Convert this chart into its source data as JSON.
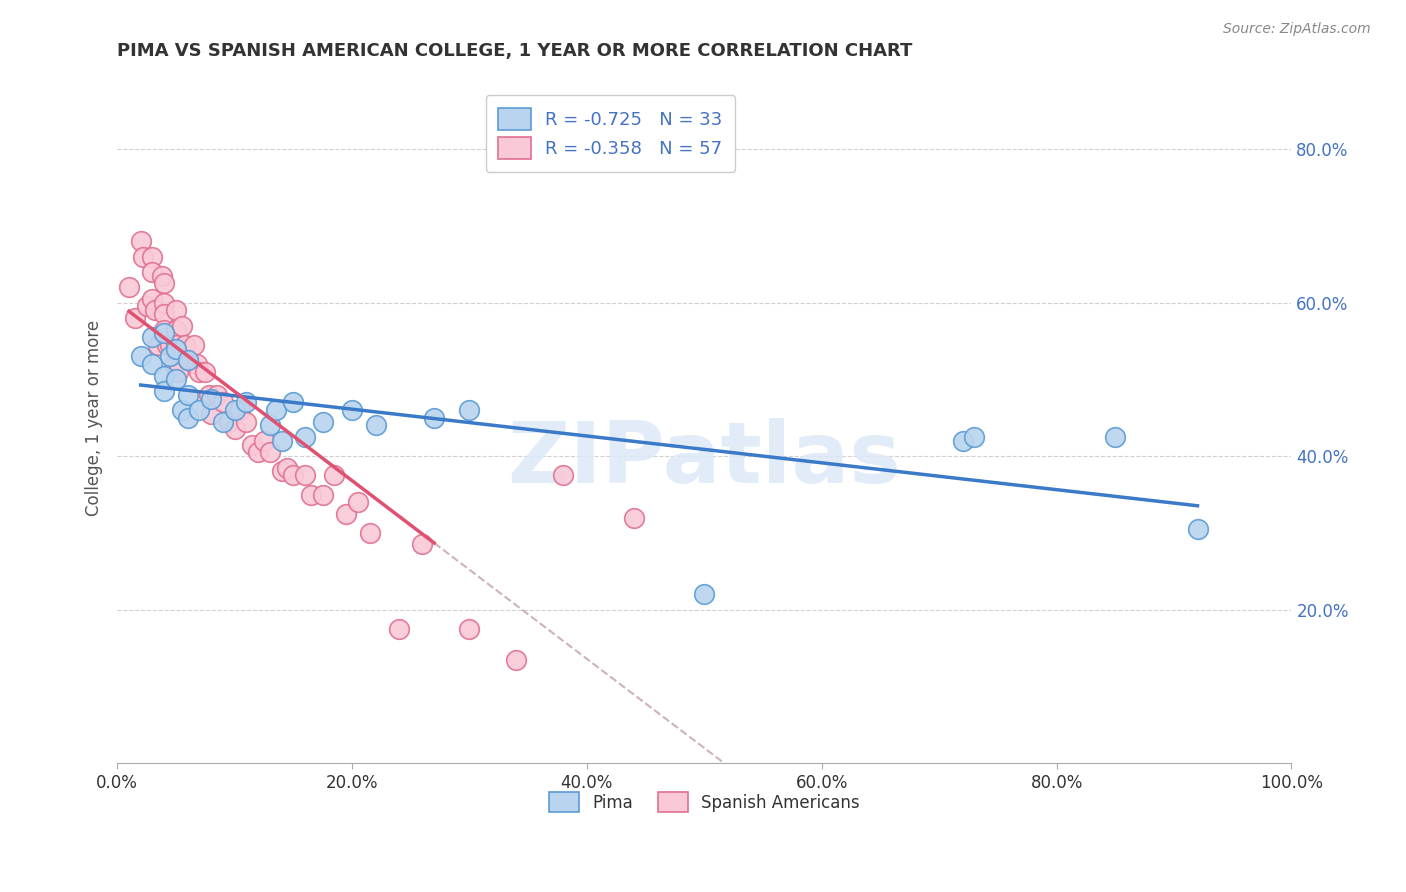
{
  "title": "PIMA VS SPANISH AMERICAN COLLEGE, 1 YEAR OR MORE CORRELATION CHART",
  "source_text": "Source: ZipAtlas.com",
  "ylabel": "College, 1 year or more",
  "xlim": [
    0.0,
    1.0
  ],
  "ylim": [
    0.0,
    0.9
  ],
  "yticks": [
    0.2,
    0.4,
    0.6,
    0.8
  ],
  "ytick_labels": [
    "20.0%",
    "40.0%",
    "60.0%",
    "80.0%"
  ],
  "xticks": [
    0.0,
    0.2,
    0.4,
    0.6,
    0.8,
    1.0
  ],
  "xtick_labels": [
    "0.0%",
    "20.0%",
    "40.0%",
    "60.0%",
    "80.0%",
    "100.0%"
  ],
  "pima_color": "#b8d4ee",
  "pima_edge_color": "#5b9bd5",
  "spanish_color": "#f9c9d8",
  "spanish_edge_color": "#e07090",
  "pima_line_color": "#3a7ac8",
  "spanish_line_color": "#e05070",
  "dashed_line_color": "#d0b0c0",
  "legend_label_pima": "R = -0.725   N = 33",
  "legend_label_spanish": "R = -0.358   N = 57",
  "bottom_legend_pima": "Pima",
  "bottom_legend_spanish": "Spanish Americans",
  "watermark_text": "ZIPatlas",
  "pima_scatter_x": [
    0.02,
    0.03,
    0.03,
    0.04,
    0.04,
    0.04,
    0.045,
    0.05,
    0.05,
    0.055,
    0.06,
    0.06,
    0.06,
    0.07,
    0.08,
    0.09,
    0.1,
    0.11,
    0.13,
    0.135,
    0.14,
    0.15,
    0.16,
    0.175,
    0.2,
    0.22,
    0.27,
    0.3,
    0.5,
    0.72,
    0.73,
    0.85,
    0.92
  ],
  "pima_scatter_y": [
    0.53,
    0.52,
    0.555,
    0.505,
    0.56,
    0.485,
    0.53,
    0.54,
    0.5,
    0.46,
    0.48,
    0.45,
    0.525,
    0.46,
    0.475,
    0.445,
    0.46,
    0.47,
    0.44,
    0.46,
    0.42,
    0.47,
    0.425,
    0.445,
    0.46,
    0.44,
    0.45,
    0.46,
    0.22,
    0.42,
    0.425,
    0.425,
    0.305
  ],
  "spanish_scatter_x": [
    0.01,
    0.015,
    0.02,
    0.022,
    0.025,
    0.03,
    0.03,
    0.03,
    0.032,
    0.035,
    0.038,
    0.04,
    0.04,
    0.04,
    0.04,
    0.042,
    0.045,
    0.048,
    0.05,
    0.05,
    0.05,
    0.052,
    0.055,
    0.058,
    0.06,
    0.065,
    0.068,
    0.07,
    0.075,
    0.078,
    0.08,
    0.085,
    0.09,
    0.095,
    0.1,
    0.105,
    0.11,
    0.115,
    0.12,
    0.125,
    0.13,
    0.14,
    0.145,
    0.15,
    0.16,
    0.165,
    0.175,
    0.185,
    0.195,
    0.205,
    0.215,
    0.24,
    0.26,
    0.3,
    0.34,
    0.38,
    0.44
  ],
  "spanish_scatter_y": [
    0.62,
    0.58,
    0.68,
    0.66,
    0.595,
    0.66,
    0.64,
    0.605,
    0.59,
    0.545,
    0.635,
    0.625,
    0.6,
    0.585,
    0.565,
    0.545,
    0.545,
    0.52,
    0.59,
    0.565,
    0.545,
    0.51,
    0.57,
    0.545,
    0.525,
    0.545,
    0.52,
    0.51,
    0.51,
    0.48,
    0.455,
    0.48,
    0.47,
    0.445,
    0.435,
    0.46,
    0.445,
    0.415,
    0.405,
    0.42,
    0.405,
    0.38,
    0.385,
    0.375,
    0.375,
    0.35,
    0.35,
    0.375,
    0.325,
    0.34,
    0.3,
    0.175,
    0.285,
    0.175,
    0.135,
    0.375,
    0.32
  ]
}
